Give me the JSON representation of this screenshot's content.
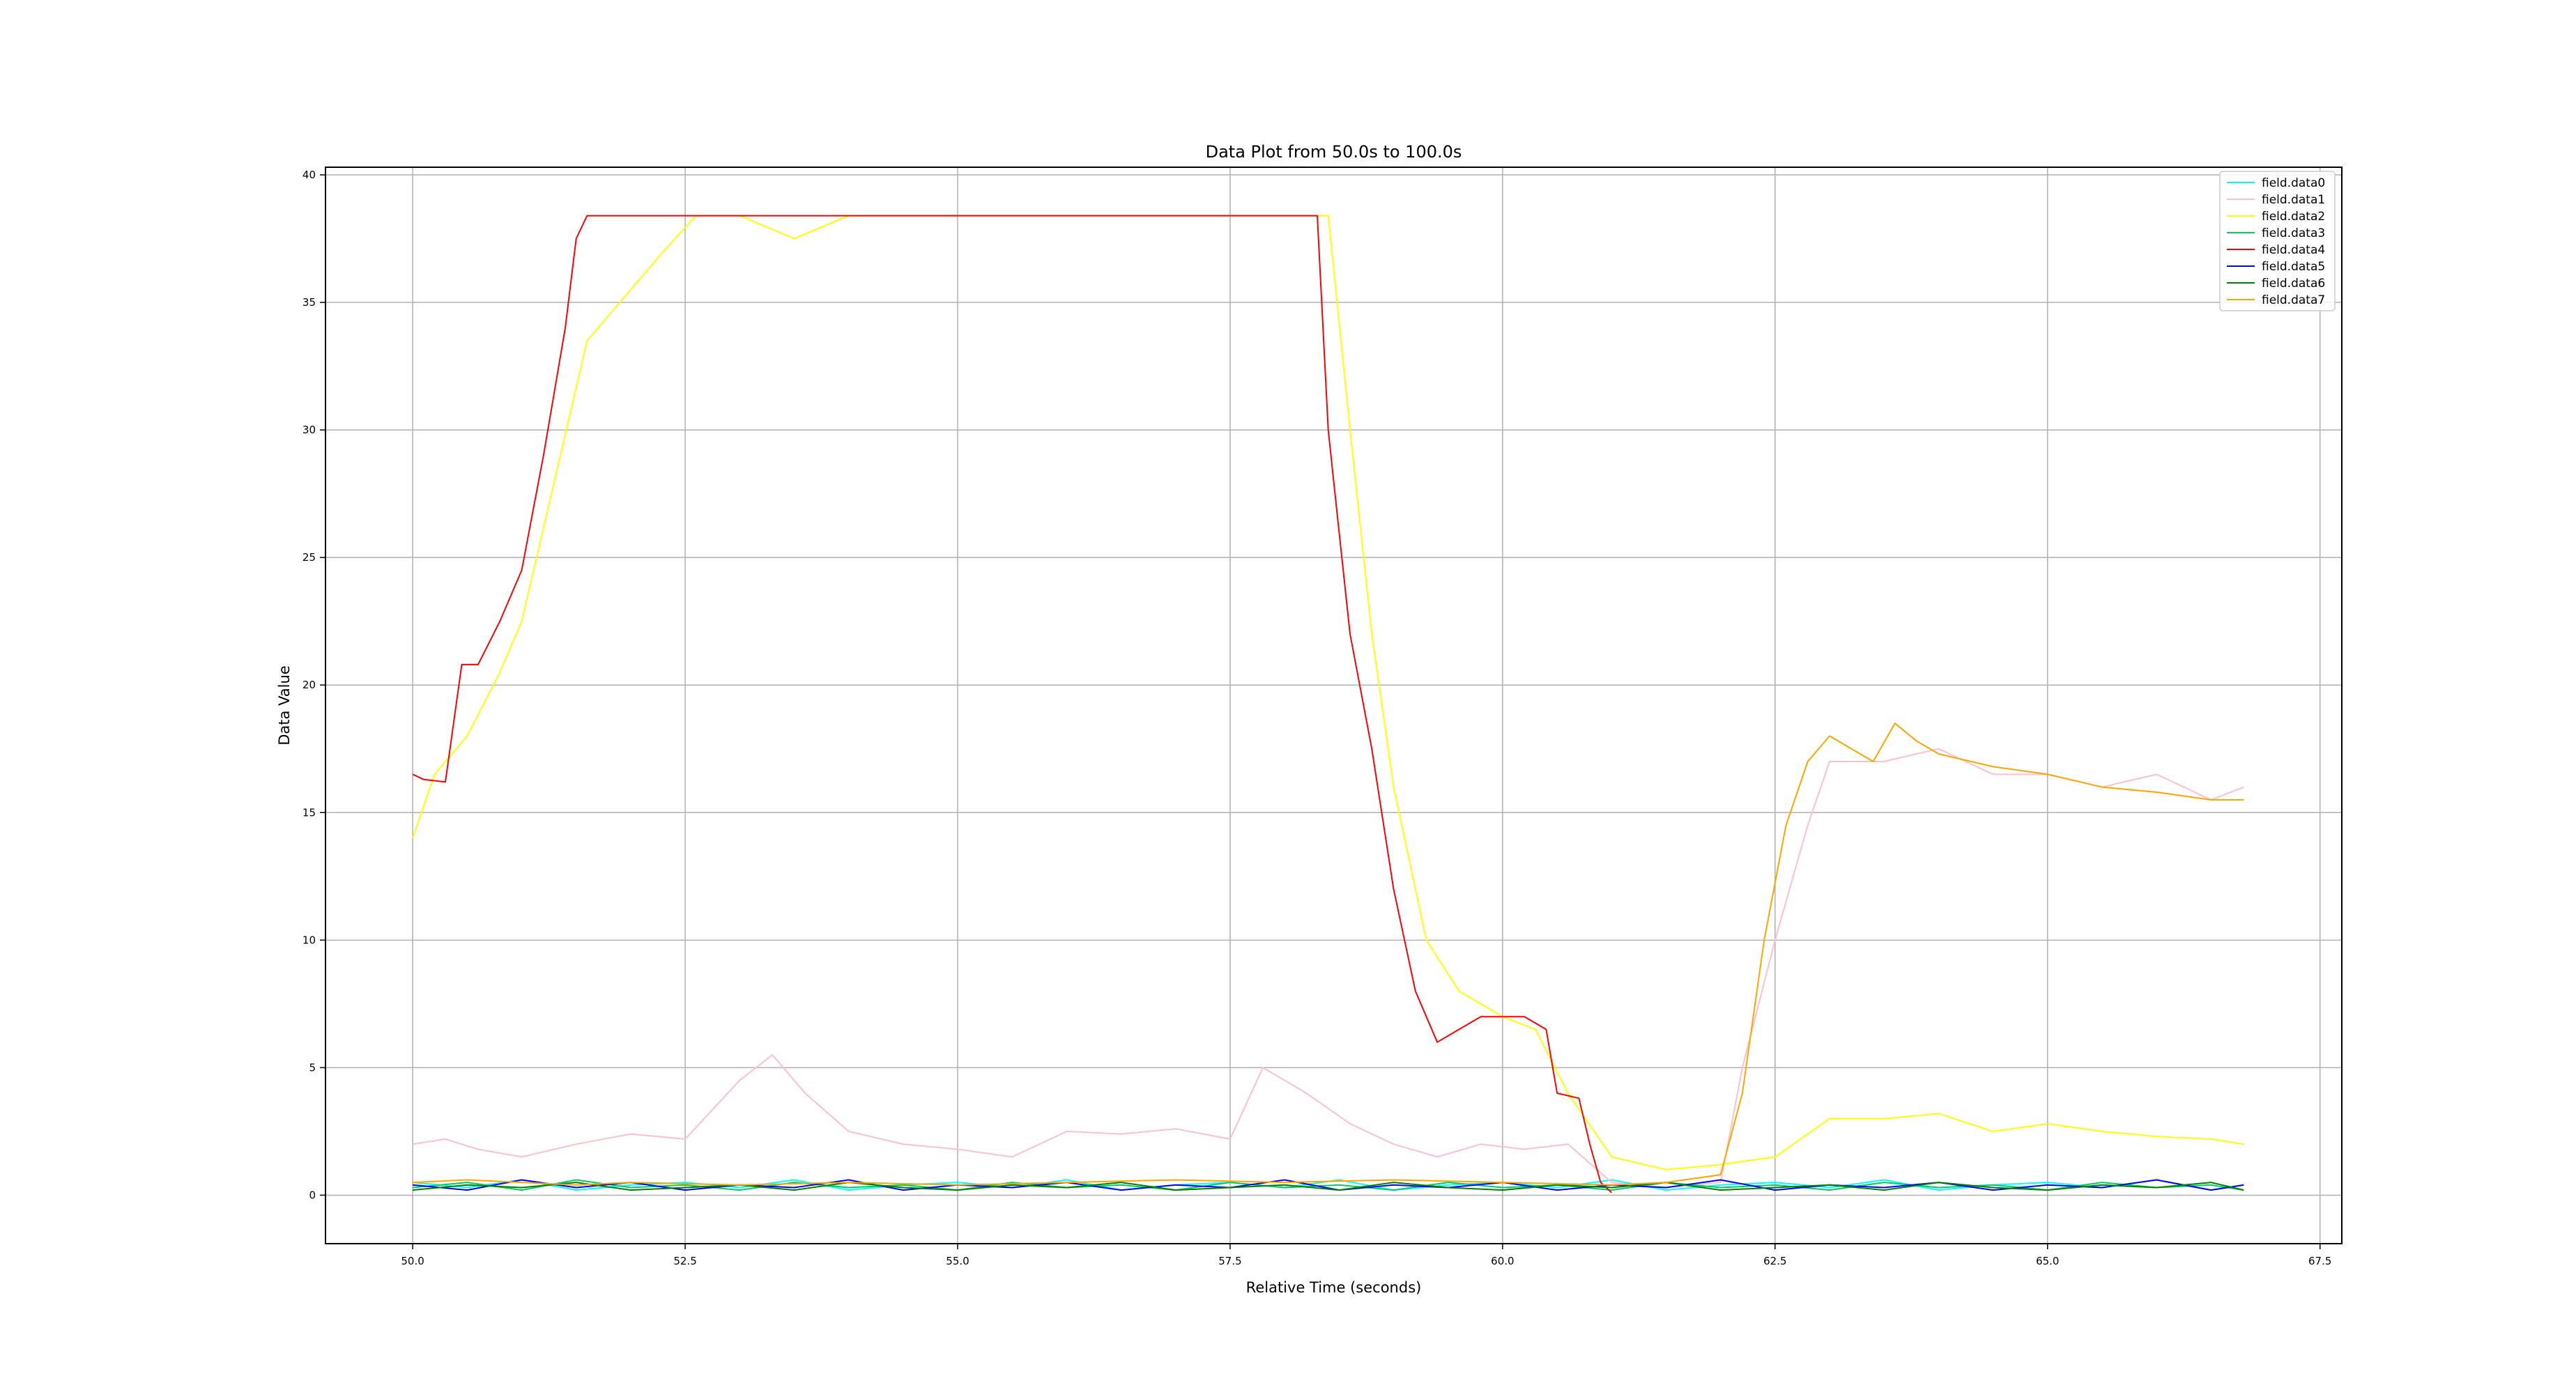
{
  "chart_data": {
    "type": "line",
    "title": "Data Plot from 50.0s to 100.0s",
    "xlabel": "Relative Time (seconds)",
    "ylabel": "Data Value",
    "xlim": [
      49.2,
      67.7
    ],
    "ylim": [
      -1.9,
      40.3
    ],
    "x_ticks": [
      50.0,
      52.5,
      55.0,
      57.5,
      60.0,
      62.5,
      65.0,
      67.5
    ],
    "x_tick_labels": [
      "50.0",
      "52.5",
      "55.0",
      "57.5",
      "60.0",
      "62.5",
      "65.0",
      "67.5"
    ],
    "y_ticks": [
      0,
      5,
      10,
      15,
      20,
      25,
      30,
      35,
      40
    ],
    "y_tick_labels": [
      "0",
      "5",
      "10",
      "15",
      "20",
      "25",
      "30",
      "35",
      "40"
    ],
    "grid": true,
    "legend_position": "top-right",
    "series": [
      {
        "name": "field.data0",
        "color": "#00ffff",
        "x": [
          50.0,
          50.5,
          51.0,
          51.5,
          52.0,
          52.5,
          53.0,
          53.5,
          54.0,
          54.5,
          55.0,
          55.5,
          56.0,
          56.5,
          57.0,
          57.5,
          58.0,
          58.5,
          59.0,
          59.5,
          60.0,
          60.5,
          61.0,
          61.5,
          62.0,
          62.5,
          63.0,
          63.5,
          64.0,
          64.5,
          65.0,
          65.5,
          66.0,
          66.5,
          66.8
        ],
        "y": [
          0.5,
          0.3,
          0.6,
          0.2,
          0.4,
          0.5,
          0.3,
          0.6,
          0.2,
          0.4,
          0.5,
          0.3,
          0.6,
          0.2,
          0.4,
          0.5,
          0.3,
          0.6,
          0.2,
          0.4,
          0.5,
          0.3,
          0.6,
          0.2,
          0.4,
          0.5,
          0.3,
          0.6,
          0.2,
          0.4,
          0.5,
          0.3,
          0.6,
          0.2,
          0.4
        ]
      },
      {
        "name": "field.data1",
        "color": "#ffc0cb",
        "x": [
          50.0,
          50.3,
          50.6,
          51.0,
          51.5,
          52.0,
          52.5,
          53.0,
          53.3,
          53.6,
          54.0,
          54.5,
          55.0,
          55.5,
          56.0,
          56.5,
          57.0,
          57.5,
          57.8,
          58.2,
          58.6,
          59.0,
          59.4,
          59.8,
          60.2,
          60.6,
          61.0,
          61.5,
          62.0,
          62.2,
          62.5,
          62.8,
          63.0,
          63.5,
          64.0,
          64.5,
          65.0,
          65.5,
          66.0,
          66.5,
          66.8
        ],
        "y": [
          2.0,
          2.2,
          1.8,
          1.5,
          2.0,
          2.4,
          2.2,
          4.5,
          5.5,
          4.0,
          2.5,
          2.0,
          1.8,
          1.5,
          2.5,
          2.4,
          2.6,
          2.2,
          5.0,
          4.0,
          2.8,
          2.0,
          1.5,
          2.0,
          1.8,
          2.0,
          0.5,
          0.3,
          0.5,
          5.0,
          10.0,
          14.5,
          17.0,
          17.0,
          17.5,
          16.5,
          16.5,
          16.0,
          16.5,
          15.5,
          16.0
        ]
      },
      {
        "name": "field.data2",
        "color": "#ffff00",
        "x": [
          50.0,
          50.2,
          50.5,
          50.8,
          51.0,
          51.3,
          51.6,
          52.0,
          52.3,
          52.6,
          53.0,
          53.5,
          54.0,
          55.0,
          56.0,
          57.0,
          58.0,
          58.4,
          58.6,
          58.8,
          59.0,
          59.3,
          59.6,
          60.0,
          60.3,
          60.6,
          61.0,
          61.5,
          62.0,
          62.5,
          63.0,
          63.5,
          64.0,
          64.5,
          65.0,
          65.5,
          66.0,
          66.5,
          66.8
        ],
        "y": [
          14.0,
          16.5,
          18.0,
          20.5,
          22.5,
          28.0,
          33.5,
          35.5,
          37.0,
          38.4,
          38.4,
          37.5,
          38.4,
          38.4,
          38.4,
          38.4,
          38.4,
          38.4,
          30.0,
          22.0,
          16.0,
          10.0,
          8.0,
          7.0,
          6.5,
          4.0,
          1.5,
          1.0,
          1.2,
          1.5,
          3.0,
          3.0,
          3.2,
          2.5,
          2.8,
          2.5,
          2.3,
          2.2,
          2.0
        ]
      },
      {
        "name": "field.data3",
        "color": "#00cc66",
        "x": [
          50.0,
          50.5,
          51.0,
          51.5,
          52.0,
          52.5,
          53.0,
          53.5,
          54.0,
          54.5,
          55.0,
          55.5,
          56.0,
          56.5,
          57.0,
          57.5,
          58.0,
          58.5,
          59.0,
          59.5,
          60.0,
          60.5,
          61.0,
          61.5,
          62.0,
          62.5,
          63.0,
          63.5,
          64.0,
          64.5,
          65.0,
          65.5,
          66.0,
          66.5,
          66.8
        ],
        "y": [
          0.3,
          0.5,
          0.2,
          0.6,
          0.3,
          0.4,
          0.2,
          0.5,
          0.3,
          0.4,
          0.2,
          0.5,
          0.3,
          0.4,
          0.2,
          0.5,
          0.3,
          0.4,
          0.2,
          0.5,
          0.3,
          0.4,
          0.2,
          0.5,
          0.3,
          0.4,
          0.2,
          0.5,
          0.3,
          0.4,
          0.2,
          0.5,
          0.3,
          0.4,
          0.2
        ]
      },
      {
        "name": "field.data4",
        "color": "#ff0000",
        "x": [
          50.0,
          50.1,
          50.3,
          50.45,
          50.6,
          50.8,
          51.0,
          51.2,
          51.4,
          51.5,
          51.6,
          52.0,
          53.0,
          54.0,
          55.0,
          56.0,
          57.0,
          58.0,
          58.3,
          58.4,
          58.5,
          58.6,
          58.8,
          59.0,
          59.2,
          59.4,
          59.6,
          59.8,
          60.0,
          60.2,
          60.4,
          60.5,
          60.7,
          60.8,
          60.9,
          61.0
        ],
        "y": [
          16.5,
          16.3,
          16.2,
          20.8,
          20.8,
          22.5,
          24.5,
          29.0,
          34.0,
          37.5,
          38.4,
          38.4,
          38.4,
          38.4,
          38.4,
          38.4,
          38.4,
          38.4,
          38.4,
          30.0,
          26.0,
          22.0,
          17.5,
          12.0,
          8.0,
          6.0,
          6.5,
          7.0,
          7.0,
          7.0,
          6.5,
          4.0,
          3.8,
          2.0,
          0.5,
          0.1
        ]
      },
      {
        "name": "field.data5",
        "color": "#0000ff",
        "x": [
          50.0,
          50.5,
          51.0,
          51.5,
          52.0,
          52.5,
          53.0,
          53.5,
          54.0,
          54.5,
          55.0,
          55.5,
          56.0,
          56.5,
          57.0,
          57.5,
          58.0,
          58.5,
          59.0,
          59.5,
          60.0,
          60.5,
          61.0,
          61.5,
          62.0,
          62.5,
          63.0,
          63.5,
          64.0,
          64.5,
          65.0,
          65.5,
          66.0,
          66.5,
          66.8
        ],
        "y": [
          0.4,
          0.2,
          0.6,
          0.3,
          0.5,
          0.2,
          0.4,
          0.3,
          0.6,
          0.2,
          0.4,
          0.3,
          0.5,
          0.2,
          0.4,
          0.3,
          0.6,
          0.2,
          0.4,
          0.3,
          0.5,
          0.2,
          0.4,
          0.3,
          0.6,
          0.2,
          0.4,
          0.3,
          0.5,
          0.2,
          0.4,
          0.3,
          0.6,
          0.2,
          0.4
        ]
      },
      {
        "name": "field.data6",
        "color": "#008000",
        "x": [
          50.0,
          50.5,
          51.0,
          51.5,
          52.0,
          52.5,
          53.0,
          53.5,
          54.0,
          54.5,
          55.0,
          55.5,
          56.0,
          56.5,
          57.0,
          57.5,
          58.0,
          58.5,
          59.0,
          59.5,
          60.0,
          60.5,
          61.0,
          61.5,
          62.0,
          62.5,
          63.0,
          63.5,
          64.0,
          64.5,
          65.0,
          65.5,
          66.0,
          66.5,
          66.8
        ],
        "y": [
          0.2,
          0.4,
          0.3,
          0.5,
          0.2,
          0.3,
          0.4,
          0.2,
          0.5,
          0.3,
          0.2,
          0.4,
          0.3,
          0.5,
          0.2,
          0.3,
          0.4,
          0.2,
          0.5,
          0.3,
          0.2,
          0.4,
          0.3,
          0.5,
          0.2,
          0.3,
          0.4,
          0.2,
          0.5,
          0.3,
          0.2,
          0.4,
          0.3,
          0.5,
          0.2
        ]
      },
      {
        "name": "field.data7",
        "color": "#ffa500",
        "x": [
          50.0,
          50.5,
          51.0,
          51.5,
          52.0,
          53.0,
          54.0,
          55.0,
          56.0,
          57.0,
          58.0,
          59.0,
          60.0,
          61.0,
          61.5,
          62.0,
          62.2,
          62.4,
          62.6,
          62.8,
          63.0,
          63.2,
          63.4,
          63.6,
          63.8,
          64.0,
          64.5,
          65.0,
          65.5,
          66.0,
          66.5,
          66.8
        ],
        "y": [
          0.5,
          0.6,
          0.5,
          0.4,
          0.5,
          0.4,
          0.5,
          0.4,
          0.5,
          0.6,
          0.5,
          0.6,
          0.5,
          0.4,
          0.5,
          0.8,
          4.0,
          10.0,
          14.5,
          17.0,
          18.0,
          17.5,
          17.0,
          18.5,
          17.8,
          17.3,
          16.8,
          16.5,
          16.0,
          15.8,
          15.5,
          15.5
        ]
      }
    ]
  }
}
